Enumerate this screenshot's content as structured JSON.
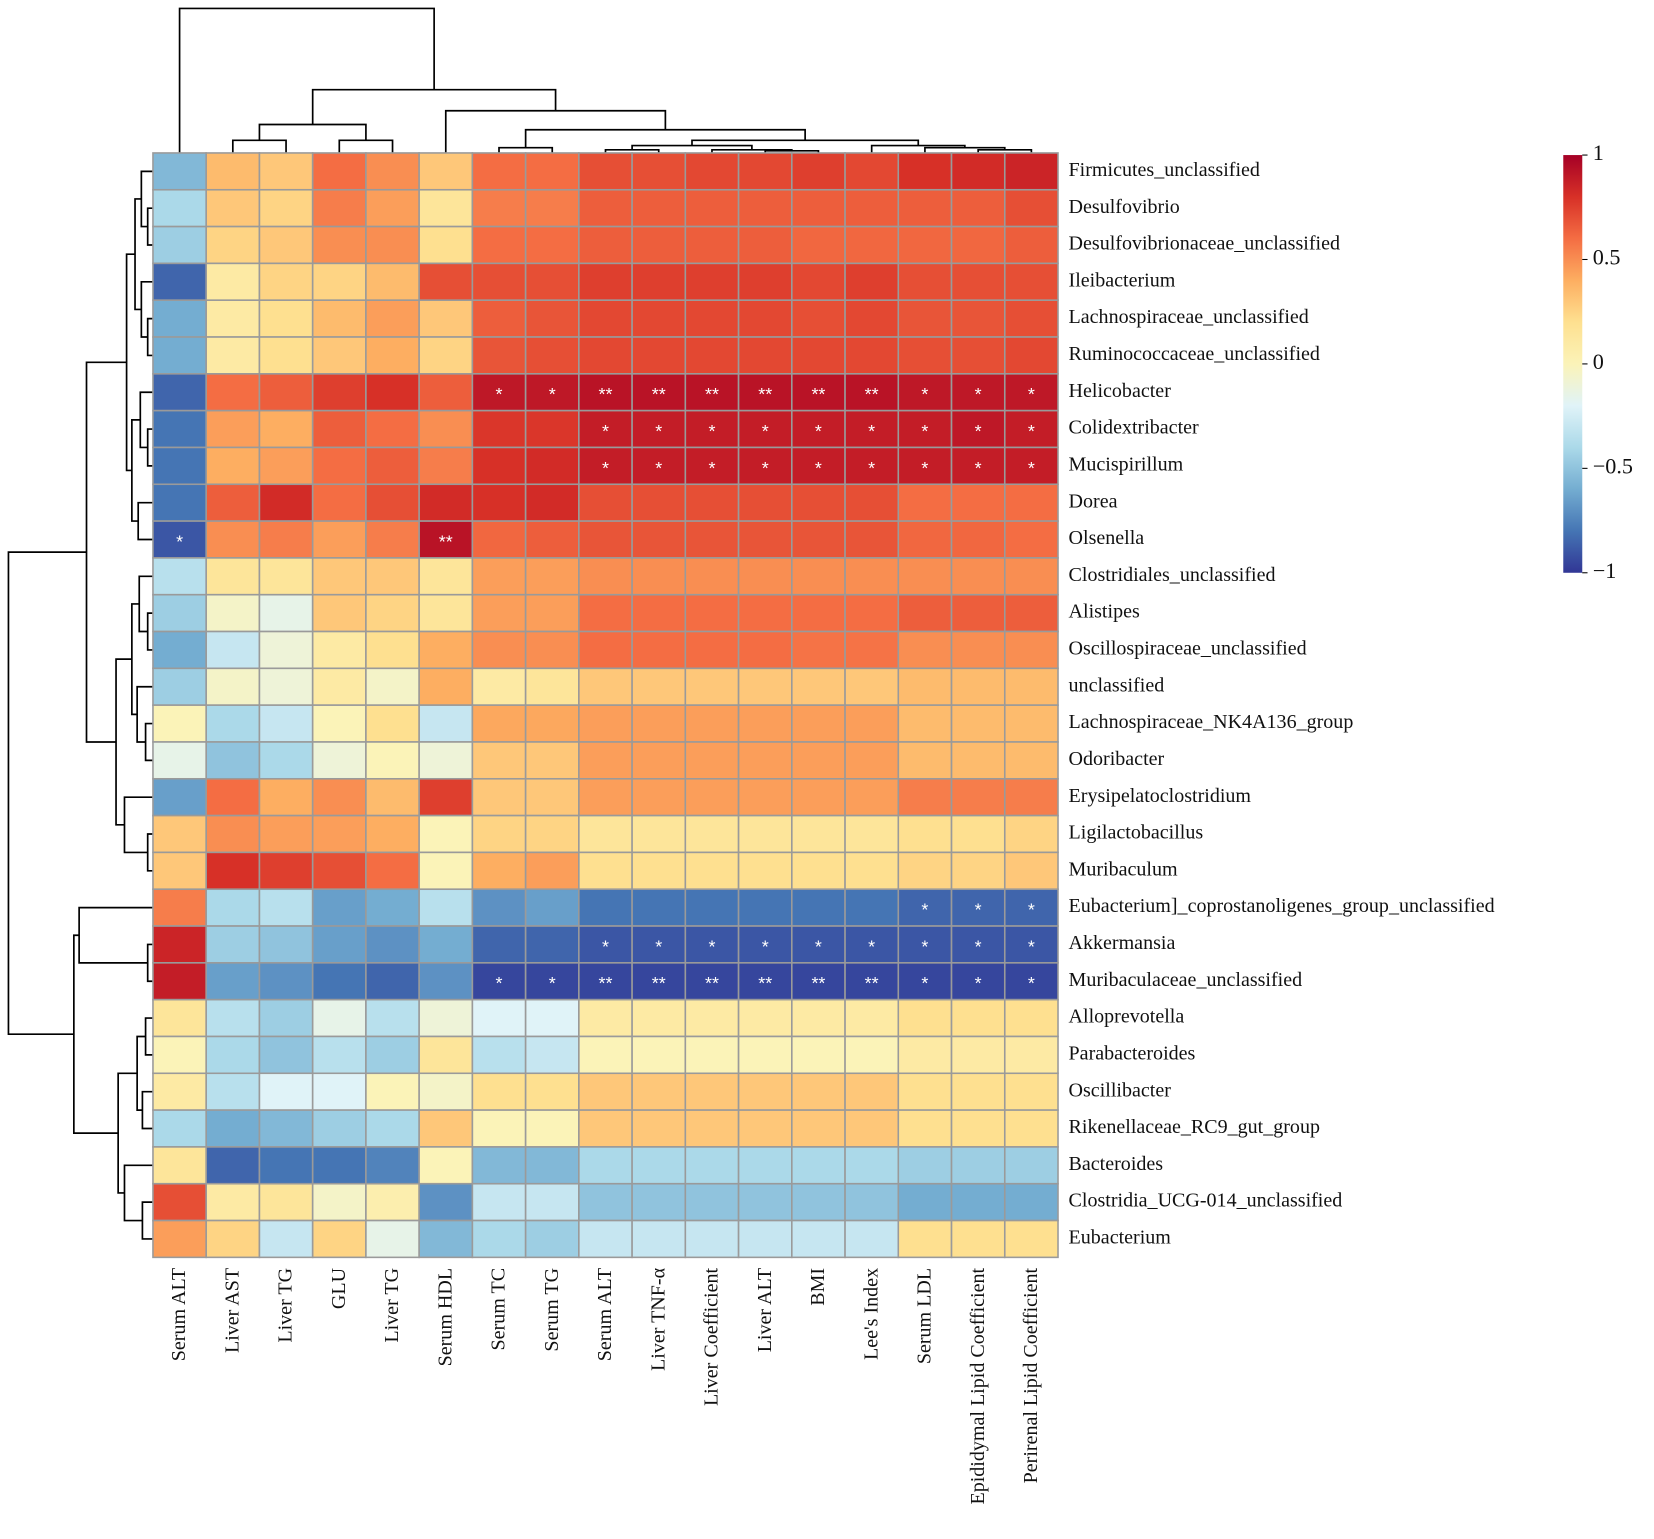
{
  "chart_data": {
    "type": "heatmap",
    "x": [
      "Serum ALT",
      "Liver AST",
      "Liver TG",
      "GLU",
      "Liver TG",
      "Serum HDL",
      "Serum TC",
      "Serum TG",
      "Serum ALT",
      "Liver TNF-α",
      "Liver Coefficient",
      "Liver ALT",
      "BMI",
      "Lee's Index",
      "Serum LDL",
      "Epididymal Lipid Coefficient",
      "Perirenal Lipid Coefficient"
    ],
    "y": [
      "Firmicutes_unclassified",
      "Desulfovibrio",
      "Desulfovibrionaceae_unclassified",
      "Ileibacterium",
      "Lachnospiraceae_unclassified",
      "Ruminococcaceae_unclassified",
      "Helicobacter",
      "Colidextribacter",
      "Mucispirillum",
      "Dorea",
      "Olsenella",
      "Clostridiales_unclassified",
      "Alistipes",
      "Oscillospiraceae_unclassified",
      "unclassified",
      "Lachnospiraceae_NK4A136_group",
      "Odoribacter",
      "Erysipelatoclostridium",
      "Ligilactobacillus",
      "Muribaculum",
      "Eubacterium]_coprostanoligenes_group_unclassified",
      "Akkermansia",
      "Muribaculaceae_unclassified",
      "Alloprevotella",
      "Parabacteroides",
      "Oscillibacter",
      "Rikenellaceae_RC9_gut_group",
      "Bacteroides",
      "Clostridia_UCG-014_unclassified",
      "Eubacterium"
    ],
    "values": [
      [
        -0.55,
        0.35,
        0.3,
        0.6,
        0.5,
        0.3,
        0.6,
        0.6,
        0.7,
        0.7,
        0.72,
        0.72,
        0.75,
        0.72,
        0.8,
        0.82,
        0.85
      ],
      [
        -0.4,
        0.3,
        0.25,
        0.55,
        0.45,
        0.15,
        0.55,
        0.55,
        0.65,
        0.65,
        0.65,
        0.65,
        0.65,
        0.65,
        0.65,
        0.65,
        0.7
      ],
      [
        -0.45,
        0.25,
        0.3,
        0.5,
        0.5,
        0.2,
        0.6,
        0.6,
        0.65,
        0.65,
        0.65,
        0.65,
        0.62,
        0.62,
        0.62,
        0.62,
        0.65
      ],
      [
        -0.85,
        0.1,
        0.25,
        0.25,
        0.35,
        0.7,
        0.7,
        0.7,
        0.75,
        0.75,
        0.75,
        0.75,
        0.72,
        0.75,
        0.7,
        0.7,
        0.7
      ],
      [
        -0.6,
        0.1,
        0.2,
        0.35,
        0.45,
        0.3,
        0.65,
        0.68,
        0.72,
        0.72,
        0.72,
        0.72,
        0.7,
        0.72,
        0.68,
        0.68,
        0.7
      ],
      [
        -0.6,
        0.1,
        0.2,
        0.3,
        0.4,
        0.25,
        0.68,
        0.7,
        0.72,
        0.72,
        0.72,
        0.72,
        0.72,
        0.72,
        0.7,
        0.7,
        0.72
      ],
      [
        -0.85,
        0.6,
        0.65,
        0.75,
        0.8,
        0.65,
        0.9,
        0.9,
        0.92,
        0.92,
        0.92,
        0.92,
        0.92,
        0.92,
        0.9,
        0.9,
        0.9
      ],
      [
        -0.8,
        0.45,
        0.4,
        0.65,
        0.6,
        0.5,
        0.78,
        0.78,
        0.88,
        0.88,
        0.88,
        0.88,
        0.88,
        0.88,
        0.88,
        0.9,
        0.88
      ],
      [
        -0.8,
        0.4,
        0.45,
        0.6,
        0.65,
        0.55,
        0.8,
        0.82,
        0.88,
        0.88,
        0.88,
        0.88,
        0.88,
        0.88,
        0.88,
        0.88,
        0.88
      ],
      [
        -0.8,
        0.65,
        0.82,
        0.6,
        0.7,
        0.82,
        0.8,
        0.82,
        0.7,
        0.7,
        0.7,
        0.7,
        0.7,
        0.7,
        0.6,
        0.6,
        0.6
      ],
      [
        -0.9,
        0.5,
        0.55,
        0.45,
        0.55,
        0.92,
        0.62,
        0.65,
        0.68,
        0.68,
        0.68,
        0.68,
        0.68,
        0.68,
        0.62,
        0.62,
        0.6
      ],
      [
        -0.35,
        0.15,
        0.15,
        0.3,
        0.3,
        0.15,
        0.45,
        0.45,
        0.5,
        0.5,
        0.5,
        0.5,
        0.5,
        0.5,
        0.5,
        0.5,
        0.5
      ],
      [
        -0.45,
        -0.05,
        -0.15,
        0.3,
        0.25,
        0.15,
        0.45,
        0.45,
        0.6,
        0.6,
        0.6,
        0.6,
        0.6,
        0.6,
        0.65,
        0.65,
        0.65
      ],
      [
        -0.6,
        -0.3,
        -0.1,
        0.1,
        0.2,
        0.4,
        0.5,
        0.5,
        0.6,
        0.6,
        0.6,
        0.6,
        0.58,
        0.58,
        0.5,
        0.5,
        0.5
      ],
      [
        -0.45,
        -0.05,
        -0.1,
        0.1,
        -0.05,
        0.4,
        0.1,
        0.15,
        0.3,
        0.3,
        0.3,
        0.3,
        0.3,
        0.3,
        0.35,
        0.35,
        0.35
      ],
      [
        0.0,
        -0.4,
        -0.3,
        0.0,
        0.2,
        -0.3,
        0.42,
        0.42,
        0.45,
        0.45,
        0.45,
        0.45,
        0.45,
        0.45,
        0.35,
        0.35,
        0.35
      ],
      [
        -0.15,
        -0.5,
        -0.4,
        -0.1,
        0.0,
        -0.1,
        0.3,
        0.3,
        0.45,
        0.45,
        0.45,
        0.45,
        0.45,
        0.45,
        0.35,
        0.35,
        0.35
      ],
      [
        -0.65,
        0.6,
        0.4,
        0.5,
        0.35,
        0.75,
        0.3,
        0.3,
        0.45,
        0.45,
        0.45,
        0.45,
        0.45,
        0.45,
        0.55,
        0.55,
        0.55
      ],
      [
        0.3,
        0.5,
        0.45,
        0.45,
        0.4,
        0.0,
        0.25,
        0.25,
        0.15,
        0.15,
        0.15,
        0.15,
        0.15,
        0.15,
        0.2,
        0.2,
        0.25
      ],
      [
        0.3,
        0.8,
        0.75,
        0.7,
        0.6,
        0.0,
        0.4,
        0.45,
        0.2,
        0.2,
        0.2,
        0.2,
        0.2,
        0.2,
        0.25,
        0.25,
        0.3
      ],
      [
        0.55,
        -0.4,
        -0.35,
        -0.65,
        -0.6,
        -0.35,
        -0.7,
        -0.65,
        -0.8,
        -0.8,
        -0.8,
        -0.8,
        -0.8,
        -0.8,
        -0.85,
        -0.85,
        -0.85
      ],
      [
        0.85,
        -0.45,
        -0.5,
        -0.65,
        -0.7,
        -0.6,
        -0.85,
        -0.85,
        -0.9,
        -0.9,
        -0.9,
        -0.9,
        -0.9,
        -0.9,
        -0.9,
        -0.9,
        -0.9
      ],
      [
        0.88,
        -0.65,
        -0.7,
        -0.8,
        -0.85,
        -0.7,
        -0.95,
        -0.95,
        -0.95,
        -0.95,
        -0.95,
        -0.95,
        -0.95,
        -0.95,
        -0.95,
        -0.95,
        -0.95
      ],
      [
        0.15,
        -0.35,
        -0.45,
        -0.15,
        -0.35,
        -0.1,
        -0.2,
        -0.2,
        0.1,
        0.1,
        0.1,
        0.1,
        0.1,
        0.1,
        0.2,
        0.2,
        0.2
      ],
      [
        0.0,
        -0.4,
        -0.5,
        -0.35,
        -0.45,
        0.15,
        -0.35,
        -0.3,
        0.0,
        0.0,
        0.0,
        0.0,
        0.0,
        0.0,
        0.1,
        0.1,
        0.1
      ],
      [
        0.1,
        -0.35,
        -0.2,
        -0.2,
        0.0,
        -0.05,
        0.2,
        0.2,
        0.3,
        0.3,
        0.3,
        0.3,
        0.3,
        0.3,
        0.2,
        0.2,
        0.2
      ],
      [
        -0.4,
        -0.6,
        -0.55,
        -0.45,
        -0.4,
        0.3,
        0.0,
        0.0,
        0.3,
        0.3,
        0.3,
        0.3,
        0.3,
        0.3,
        0.2,
        0.2,
        0.2
      ],
      [
        0.15,
        -0.85,
        -0.8,
        -0.8,
        -0.75,
        0.0,
        -0.55,
        -0.55,
        -0.4,
        -0.4,
        -0.4,
        -0.4,
        -0.4,
        -0.4,
        -0.45,
        -0.45,
        -0.45
      ],
      [
        0.7,
        0.1,
        0.15,
        -0.05,
        0.05,
        -0.7,
        -0.3,
        -0.3,
        -0.5,
        -0.5,
        -0.5,
        -0.5,
        -0.5,
        -0.5,
        -0.6,
        -0.6,
        -0.6
      ],
      [
        0.45,
        0.25,
        -0.3,
        0.25,
        -0.15,
        -0.55,
        -0.4,
        -0.45,
        -0.3,
        -0.3,
        -0.3,
        -0.3,
        -0.3,
        -0.3,
        0.2,
        0.2,
        0.2
      ]
    ],
    "annotations": [
      [
        null,
        null,
        null,
        null,
        null,
        null,
        null,
        null,
        null,
        null,
        null,
        null,
        null,
        null,
        null,
        null,
        null
      ],
      [
        null,
        null,
        null,
        null,
        null,
        null,
        null,
        null,
        null,
        null,
        null,
        null,
        null,
        null,
        null,
        null,
        null
      ],
      [
        null,
        null,
        null,
        null,
        null,
        null,
        null,
        null,
        null,
        null,
        null,
        null,
        null,
        null,
        null,
        null,
        null
      ],
      [
        null,
        null,
        null,
        null,
        null,
        null,
        null,
        null,
        null,
        null,
        null,
        null,
        null,
        null,
        null,
        null,
        null
      ],
      [
        null,
        null,
        null,
        null,
        null,
        null,
        null,
        null,
        null,
        null,
        null,
        null,
        null,
        null,
        null,
        null,
        null
      ],
      [
        null,
        null,
        null,
        null,
        null,
        null,
        null,
        null,
        null,
        null,
        null,
        null,
        null,
        null,
        null,
        null,
        null
      ],
      [
        null,
        null,
        null,
        null,
        null,
        null,
        "*",
        "*",
        "**",
        "**",
        "**",
        "**",
        "**",
        "**",
        "*",
        "*",
        "*"
      ],
      [
        null,
        null,
        null,
        null,
        null,
        null,
        null,
        null,
        "*",
        "*",
        "*",
        "*",
        "*",
        "*",
        "*",
        "*",
        "*"
      ],
      [
        null,
        null,
        null,
        null,
        null,
        null,
        null,
        null,
        "*",
        "*",
        "*",
        "*",
        "*",
        "*",
        "*",
        "*",
        "*"
      ],
      [
        null,
        null,
        null,
        null,
        null,
        null,
        null,
        null,
        null,
        null,
        null,
        null,
        null,
        null,
        null,
        null,
        null
      ],
      [
        "*",
        null,
        null,
        null,
        null,
        "**",
        null,
        null,
        null,
        null,
        null,
        null,
        null,
        null,
        null,
        null,
        null
      ],
      [
        null,
        null,
        null,
        null,
        null,
        null,
        null,
        null,
        null,
        null,
        null,
        null,
        null,
        null,
        null,
        null,
        null
      ],
      [
        null,
        null,
        null,
        null,
        null,
        null,
        null,
        null,
        null,
        null,
        null,
        null,
        null,
        null,
        null,
        null,
        null
      ],
      [
        null,
        null,
        null,
        null,
        null,
        null,
        null,
        null,
        null,
        null,
        null,
        null,
        null,
        null,
        null,
        null,
        null
      ],
      [
        null,
        null,
        null,
        null,
        null,
        null,
        null,
        null,
        null,
        null,
        null,
        null,
        null,
        null,
        null,
        null,
        null
      ],
      [
        null,
        null,
        null,
        null,
        null,
        null,
        null,
        null,
        null,
        null,
        null,
        null,
        null,
        null,
        null,
        null,
        null
      ],
      [
        null,
        null,
        null,
        null,
        null,
        null,
        null,
        null,
        null,
        null,
        null,
        null,
        null,
        null,
        null,
        null,
        null
      ],
      [
        null,
        null,
        null,
        null,
        null,
        null,
        null,
        null,
        null,
        null,
        null,
        null,
        null,
        null,
        null,
        null,
        null
      ],
      [
        null,
        null,
        null,
        null,
        null,
        null,
        null,
        null,
        null,
        null,
        null,
        null,
        null,
        null,
        null,
        null,
        null
      ],
      [
        null,
        null,
        null,
        null,
        null,
        null,
        null,
        null,
        null,
        null,
        null,
        null,
        null,
        null,
        null,
        null,
        null
      ],
      [
        null,
        null,
        null,
        null,
        null,
        null,
        null,
        null,
        null,
        null,
        null,
        null,
        null,
        null,
        "*",
        "*",
        "*"
      ],
      [
        null,
        null,
        null,
        null,
        null,
        null,
        null,
        null,
        "*",
        "*",
        "*",
        "*",
        "*",
        "*",
        "*",
        "*",
        "*"
      ],
      [
        null,
        null,
        null,
        null,
        null,
        null,
        "*",
        "*",
        "**",
        "**",
        "**",
        "**",
        "**",
        "**",
        "*",
        "*",
        "*"
      ],
      [
        null,
        null,
        null,
        null,
        null,
        null,
        null,
        null,
        null,
        null,
        null,
        null,
        null,
        null,
        null,
        null,
        null
      ],
      [
        null,
        null,
        null,
        null,
        null,
        null,
        null,
        null,
        null,
        null,
        null,
        null,
        null,
        null,
        null,
        null,
        null
      ],
      [
        null,
        null,
        null,
        null,
        null,
        null,
        null,
        null,
        null,
        null,
        null,
        null,
        null,
        null,
        null,
        null,
        null
      ],
      [
        null,
        null,
        null,
        null,
        null,
        null,
        null,
        null,
        null,
        null,
        null,
        null,
        null,
        null,
        null,
        null,
        null
      ],
      [
        null,
        null,
        null,
        null,
        null,
        null,
        null,
        null,
        null,
        null,
        null,
        null,
        null,
        null,
        null,
        null,
        null
      ],
      [
        null,
        null,
        null,
        null,
        null,
        null,
        null,
        null,
        null,
        null,
        null,
        null,
        null,
        null,
        null,
        null,
        null
      ],
      [
        null,
        null,
        null,
        null,
        null,
        null,
        null,
        null,
        null,
        null,
        null,
        null,
        null,
        null,
        null,
        null,
        null
      ]
    ],
    "colormap": [
      "#313695",
      "#4575b4",
      "#74add1",
      "#abd9e9",
      "#e0f3f8",
      "#fbf3b8",
      "#fee090",
      "#fdae61",
      "#f46d43",
      "#d73027",
      "#a50026"
    ],
    "clim": [
      -1,
      1
    ],
    "cticks": [
      1,
      0.5,
      0,
      {
        "value": -0.5,
        "label": "−0.5"
      },
      {
        "value": -1,
        "label": "−1"
      }
    ]
  }
}
